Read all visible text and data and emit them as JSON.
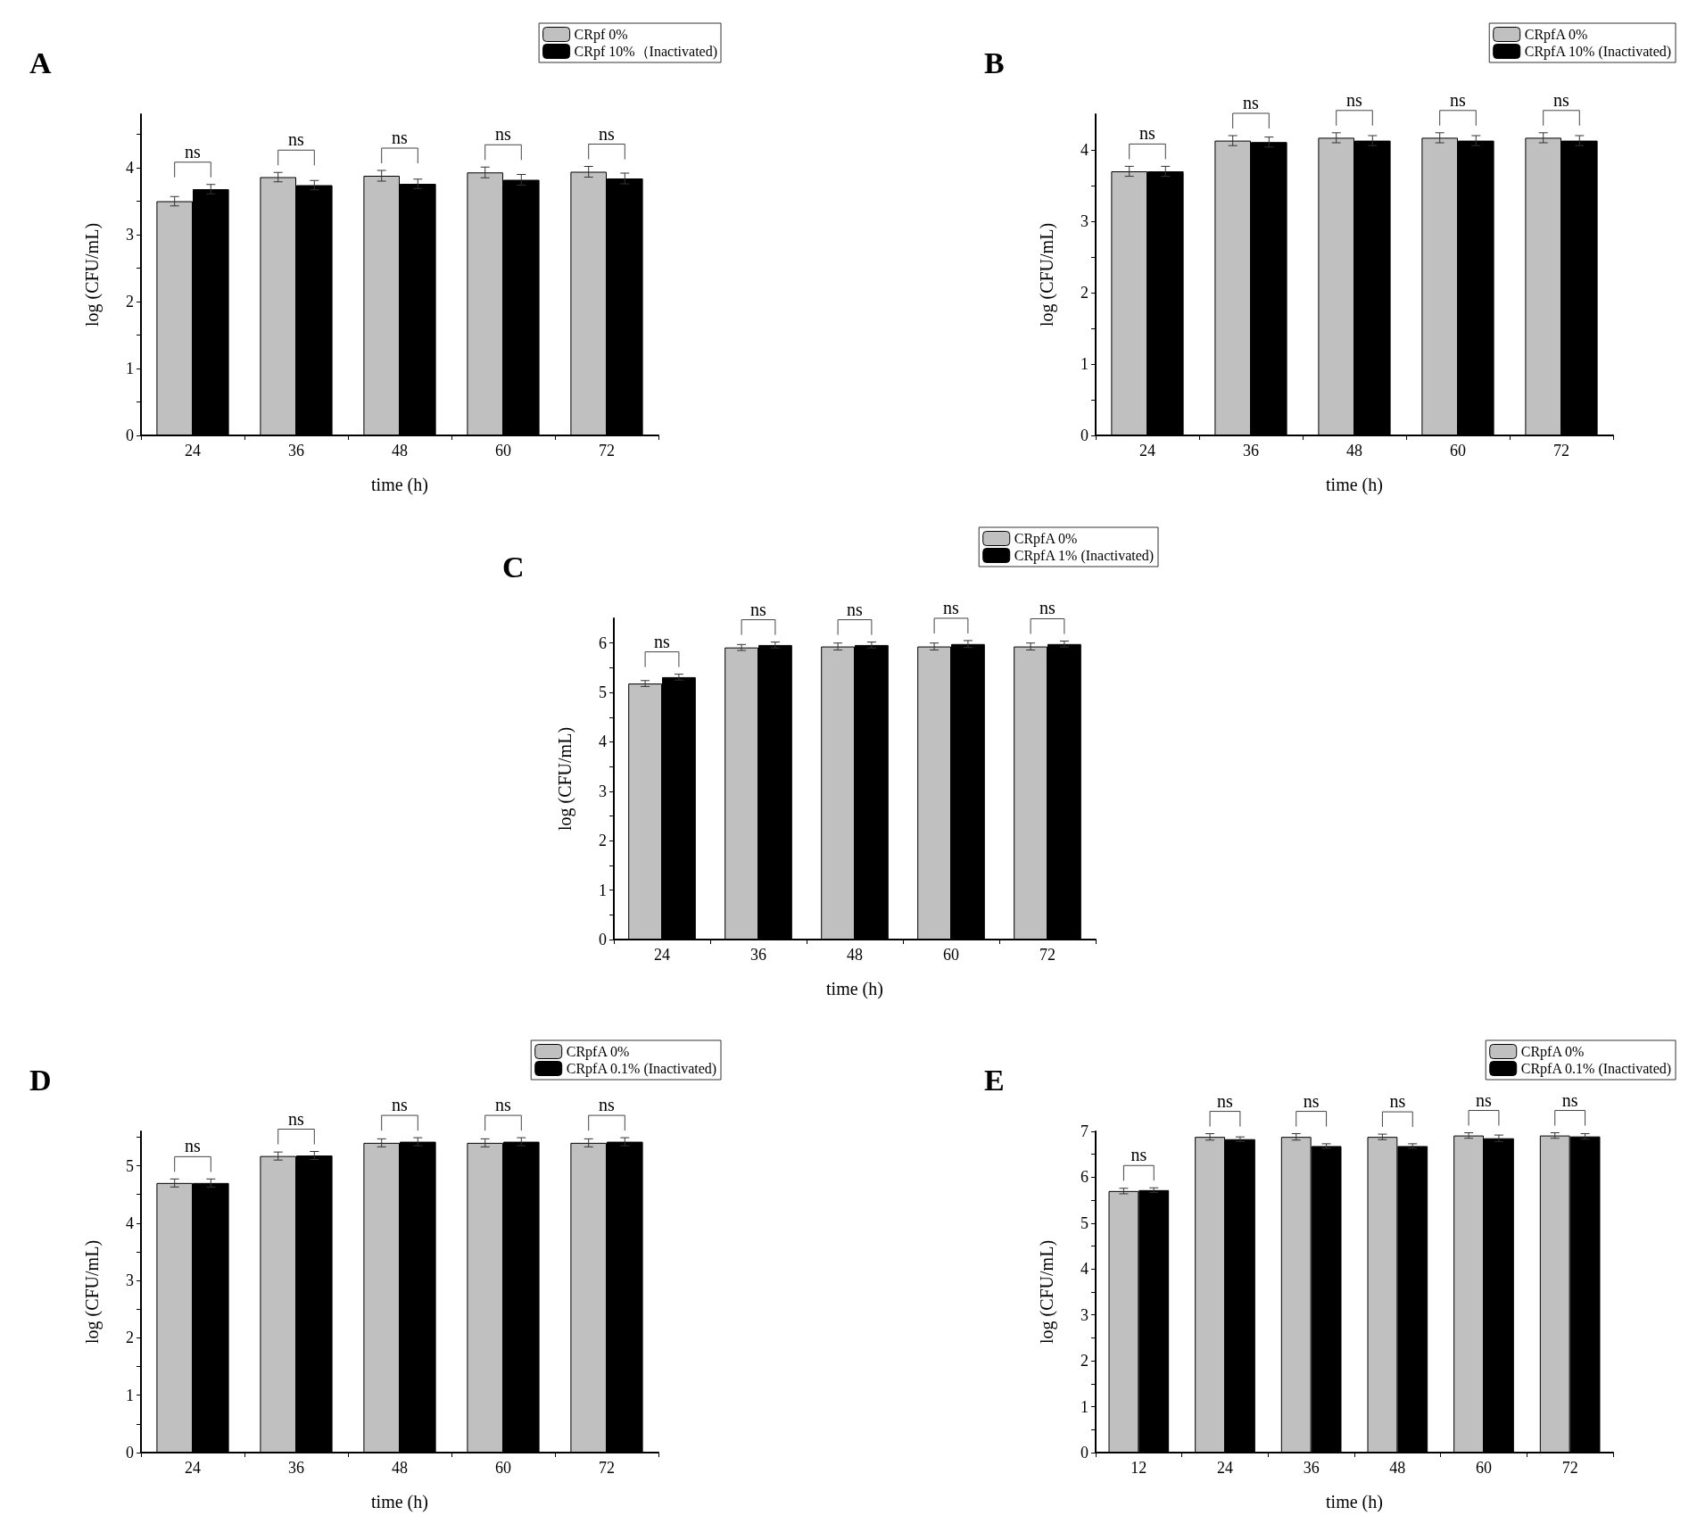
{
  "chart_data": [
    {
      "type": "bar",
      "title": "A",
      "xlabel": "time (h)",
      "ylabel": "log (CFU/mL)",
      "categories": [
        "24",
        "36",
        "48",
        "60",
        "72"
      ],
      "series": [
        {
          "name": "CRpf 0%",
          "color": "#c0c0c0",
          "values": [
            3.5,
            3.86,
            3.88,
            3.93,
            3.94
          ],
          "errors": [
            0.07,
            0.07,
            0.08,
            0.08,
            0.08
          ]
        },
        {
          "name": "CRpf 10%（Inactivated)",
          "color": "#000000",
          "values": [
            3.68,
            3.74,
            3.76,
            3.82,
            3.84
          ],
          "errors": [
            0.07,
            0.07,
            0.07,
            0.08,
            0.08
          ]
        }
      ],
      "ylim": [
        0,
        4.8
      ],
      "yticks": [
        0,
        {
          "value": 0.5,
          "label": null
        },
        1,
        {
          "value": 1.5,
          "label": null
        },
        2,
        {
          "value": 2.5,
          "label": null
        },
        3,
        {
          "value": 3.5,
          "label": null
        },
        4,
        {
          "value": 4.5,
          "label": null
        }
      ],
      "annotations": [
        "ns",
        "ns",
        "ns",
        "ns",
        "ns"
      ],
      "legend": "top right",
      "grid": false
    },
    {
      "type": "bar",
      "title": "B",
      "xlabel": "time (h)",
      "ylabel": "log (CFU/mL)",
      "categories": [
        "24",
        "36",
        "48",
        "60",
        "72"
      ],
      "series": [
        {
          "name": "CRpfA 0%",
          "color": "#c0c0c0",
          "values": [
            3.7,
            4.13,
            4.17,
            4.17,
            4.17
          ],
          "errors": [
            0.07,
            0.07,
            0.07,
            0.07,
            0.07
          ]
        },
        {
          "name": "CRpfA 10% (Inactivated)",
          "color": "#000000",
          "values": [
            3.7,
            4.11,
            4.13,
            4.13,
            4.13
          ],
          "errors": [
            0.07,
            0.07,
            0.07,
            0.07,
            0.07
          ]
        }
      ],
      "ylim": [
        0,
        4.5
      ],
      "yticks": [
        0,
        {
          "value": 0.5,
          "label": null
        },
        1,
        {
          "value": 1.5,
          "label": null
        },
        2,
        {
          "value": 2.5,
          "label": null
        },
        3,
        {
          "value": 3.5,
          "label": null
        },
        4
      ],
      "annotations": [
        "ns",
        "ns",
        "ns",
        "ns",
        "ns"
      ],
      "legend": "top right",
      "grid": false
    },
    {
      "type": "bar",
      "title": "C",
      "xlabel": "time (h)",
      "ylabel": "log (CFU/mL)",
      "categories": [
        "24",
        "36",
        "48",
        "60",
        "72"
      ],
      "series": [
        {
          "name": "CRpfA 0%",
          "color": "#c0c0c0",
          "values": [
            5.18,
            5.91,
            5.93,
            5.93,
            5.93
          ],
          "errors": [
            0.06,
            0.06,
            0.07,
            0.07,
            0.07
          ]
        },
        {
          "name": "CRpfA 1% (Inactivated)",
          "color": "#000000",
          "values": [
            5.31,
            5.96,
            5.96,
            5.98,
            5.98
          ],
          "errors": [
            0.06,
            0.06,
            0.06,
            0.07,
            0.06
          ]
        }
      ],
      "ylim": [
        0,
        6.5
      ],
      "yticks": [
        0,
        {
          "value": 0.5,
          "label": null
        },
        1,
        {
          "value": 1.5,
          "label": null
        },
        2,
        {
          "value": 2.5,
          "label": null
        },
        3,
        {
          "value": 3.5,
          "label": null
        },
        4,
        {
          "value": 4.5,
          "label": null
        },
        5,
        {
          "value": 5.5,
          "label": null
        },
        6
      ],
      "annotations": [
        "ns",
        "ns",
        "ns",
        "ns",
        "ns"
      ],
      "legend": "top right",
      "grid": false
    },
    {
      "type": "bar",
      "title": "D",
      "xlabel": "time (h)",
      "ylabel": "log (CFU/mL)",
      "categories": [
        "24",
        "36",
        "48",
        "60",
        "72"
      ],
      "series": [
        {
          "name": "CRpfA 0%",
          "color": "#c0c0c0",
          "values": [
            4.7,
            5.17,
            5.4,
            5.4,
            5.4
          ],
          "errors": [
            0.07,
            0.07,
            0.07,
            0.07,
            0.07
          ]
        },
        {
          "name": "CRpfA 0.1% (Inactivated)",
          "color": "#000000",
          "values": [
            4.7,
            5.18,
            5.42,
            5.42,
            5.42
          ],
          "errors": [
            0.07,
            0.07,
            0.07,
            0.07,
            0.07
          ]
        }
      ],
      "ylim": [
        0,
        5.6
      ],
      "yticks": [
        0,
        {
          "value": 0.5,
          "label": null
        },
        1,
        {
          "value": 1.5,
          "label": null
        },
        2,
        {
          "value": 2.5,
          "label": null
        },
        3,
        {
          "value": 3.5,
          "label": null
        },
        4,
        {
          "value": 4.5,
          "label": null
        },
        5,
        {
          "value": 5.5,
          "label": null
        }
      ],
      "annotations": [
        "ns",
        "ns",
        "ns",
        "ns",
        "ns"
      ],
      "legend": "top right",
      "grid": false
    },
    {
      "type": "bar",
      "title": "E",
      "xlabel": "time (h)",
      "ylabel": "log (CFU/mL)",
      "categories": [
        "12",
        "24",
        "36",
        "48",
        "60",
        "72"
      ],
      "series": [
        {
          "name": "CRpfA 0%",
          "color": "#c0c0c0",
          "values": [
            5.7,
            6.88,
            6.88,
            6.88,
            6.91,
            6.91
          ],
          "errors": [
            0.06,
            0.07,
            0.07,
            0.06,
            0.06,
            0.06
          ]
        },
        {
          "name": "CRpfA 0.1% (Inactivated)",
          "color": "#000000",
          "values": [
            5.72,
            6.83,
            6.68,
            6.68,
            6.85,
            6.89
          ],
          "errors": [
            0.05,
            0.05,
            0.05,
            0.05,
            0.07,
            0.06
          ]
        }
      ],
      "ylim": [
        0,
        7
      ],
      "yticks": [
        0,
        {
          "value": 0.5,
          "label": null
        },
        1,
        {
          "value": 1.5,
          "label": null
        },
        2,
        {
          "value": 2.5,
          "label": null
        },
        3,
        {
          "value": 3.5,
          "label": null
        },
        4,
        {
          "value": 4.5,
          "label": null
        },
        5,
        {
          "value": 5.5,
          "label": null
        },
        6,
        {
          "value": 6.5,
          "label": null
        },
        7
      ],
      "annotations": [
        "ns",
        "ns",
        "ns",
        "ns",
        "ns",
        "ns"
      ],
      "legend": "top right",
      "grid": false
    }
  ]
}
